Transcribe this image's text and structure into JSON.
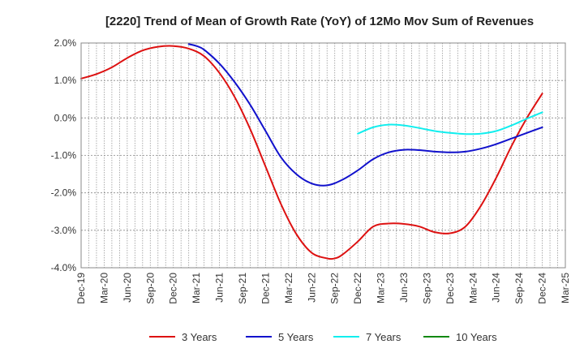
{
  "chart_data": {
    "type": "line",
    "title": "[2220]  Trend of Mean of Growth Rate (YoY) of 12Mo Mov Sum of Revenues",
    "xlabel": "",
    "ylabel": "",
    "ylim": [
      -4.0,
      2.0
    ],
    "yticks": [
      -4.0,
      -3.0,
      -2.0,
      -1.0,
      0.0,
      1.0,
      2.0
    ],
    "ytick_labels": [
      "-4.0%",
      "-3.0%",
      "-2.0%",
      "-1.0%",
      "0.0%",
      "1.0%",
      "2.0%"
    ],
    "x_start_month_index": 0,
    "x_end_month_index": 63,
    "xtick_indices": [
      0,
      3,
      6,
      9,
      12,
      15,
      18,
      21,
      24,
      27,
      30,
      33,
      36,
      39,
      42,
      45,
      48,
      51,
      54,
      57,
      60,
      63
    ],
    "xtick_labels": [
      "Dec-19",
      "Mar-20",
      "Jun-20",
      "Sep-20",
      "Dec-20",
      "Mar-21",
      "Jun-21",
      "Sep-21",
      "Dec-21",
      "Mar-22",
      "Jun-22",
      "Sep-22",
      "Dec-22",
      "Mar-23",
      "Jun-23",
      "Sep-23",
      "Dec-23",
      "Mar-24",
      "Jun-24",
      "Sep-24",
      "Dec-24",
      "Mar-25"
    ],
    "grid": true,
    "legend_position": "bottom",
    "series": [
      {
        "name": "3 Years",
        "color": "#dd1111",
        "x": [
          0,
          2,
          4,
          6,
          8,
          10,
          12,
          14,
          16,
          18,
          20,
          22,
          24,
          26,
          28,
          30,
          32,
          33,
          34,
          36,
          38,
          40,
          42,
          44,
          46,
          48,
          50,
          52,
          54,
          56,
          58,
          60
        ],
        "values": [
          1.05,
          1.17,
          1.35,
          1.6,
          1.8,
          1.9,
          1.92,
          1.85,
          1.65,
          1.2,
          0.55,
          -0.3,
          -1.3,
          -2.3,
          -3.1,
          -3.6,
          -3.75,
          -3.75,
          -3.65,
          -3.3,
          -2.9,
          -2.82,
          -2.83,
          -2.9,
          -3.05,
          -3.08,
          -2.9,
          -2.35,
          -1.6,
          -0.75,
          0.0,
          0.65
        ]
      },
      {
        "name": "5 Years",
        "color": "#1111cc",
        "x": [
          14,
          15,
          16,
          18,
          20,
          22,
          24,
          26,
          28,
          30,
          32,
          34,
          36,
          38,
          40,
          42,
          44,
          46,
          48,
          50,
          52,
          54,
          56,
          58,
          60
        ],
        "values": [
          1.97,
          1.92,
          1.82,
          1.45,
          0.95,
          0.35,
          -0.35,
          -1.05,
          -1.5,
          -1.75,
          -1.8,
          -1.65,
          -1.4,
          -1.1,
          -0.92,
          -0.85,
          -0.86,
          -0.9,
          -0.92,
          -0.9,
          -0.82,
          -0.7,
          -0.55,
          -0.4,
          -0.25
        ]
      },
      {
        "name": "7 Years",
        "color": "#11eeee",
        "x": [
          36,
          38,
          40,
          42,
          44,
          46,
          48,
          50,
          52,
          54,
          56,
          58,
          60
        ],
        "values": [
          -0.42,
          -0.25,
          -0.18,
          -0.2,
          -0.27,
          -0.35,
          -0.4,
          -0.43,
          -0.42,
          -0.35,
          -0.2,
          -0.02,
          0.15
        ]
      },
      {
        "name": "10 Years",
        "color": "#118811",
        "x": [],
        "values": []
      }
    ]
  }
}
